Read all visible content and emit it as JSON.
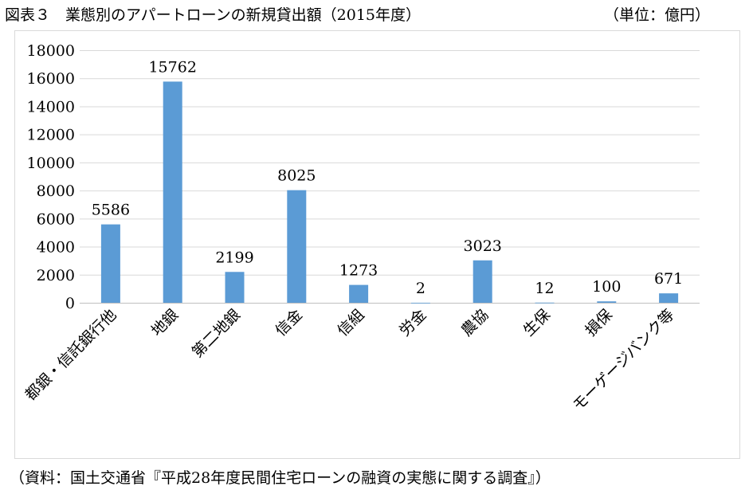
{
  "header": {
    "title": "図表３　業態別のアパートローンの新規貸出額（2015年度）",
    "unit": "（単位：億円）"
  },
  "footer": {
    "source": "（資料：国土交通省『平成28年度民間住宅ローンの融資の実態に関する調査』）"
  },
  "colors": {
    "bar": "#5b9bd5",
    "grid": "#d9d9d9",
    "border": "#d9d9d9"
  },
  "chart_data": {
    "type": "bar",
    "title": "業態別のアパートローンの新規貸出額（2015年度）",
    "xlabel": "",
    "ylabel": "億円",
    "categories": [
      "都銀・信託銀行他",
      "地銀",
      "第二地銀",
      "信金",
      "信組",
      "労金",
      "農協",
      "生保",
      "損保",
      "モーゲージバンク等"
    ],
    "values": [
      5586,
      15762,
      2199,
      8025,
      1273,
      2,
      3023,
      12,
      100,
      671
    ],
    "ylim": [
      0,
      18000
    ],
    "yticks": [
      0,
      2000,
      4000,
      6000,
      8000,
      10000,
      12000,
      14000,
      16000,
      18000
    ],
    "grid": true,
    "legend": "none"
  }
}
